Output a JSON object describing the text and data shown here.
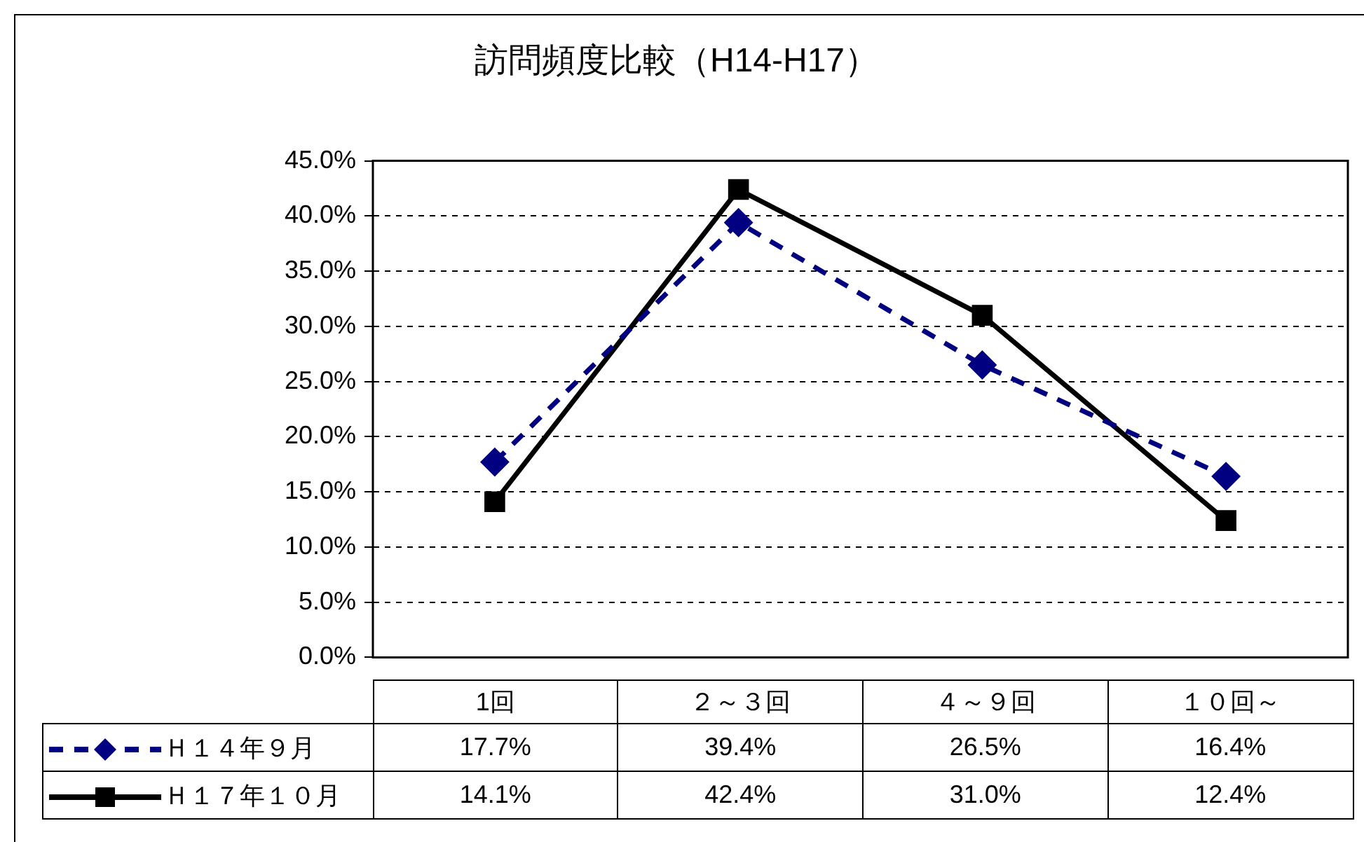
{
  "chart_data": {
    "type": "line",
    "title": "訪問頻度比較（H14-H17）",
    "categories": [
      "1回",
      "２～３回",
      "４～９回",
      "１０回～"
    ],
    "series": [
      {
        "name": "Ｈ１４年９月",
        "color": "#000080",
        "marker": "diamond",
        "line_style": "dashed",
        "values": [
          17.7,
          39.4,
          26.5,
          16.4
        ],
        "value_labels": [
          "17.7%",
          "39.4%",
          "26.5%",
          "16.4%"
        ]
      },
      {
        "name": "Ｈ１７年１０月",
        "color": "#000000",
        "marker": "square",
        "line_style": "solid",
        "values": [
          14.1,
          42.4,
          31.0,
          12.4
        ],
        "value_labels": [
          "14.1%",
          "42.4%",
          "31.0%",
          "12.4%"
        ]
      }
    ],
    "ylim": [
      0,
      45
    ],
    "yticks": [
      {
        "value": 0,
        "label": "0.0%"
      },
      {
        "value": 5,
        "label": "5.0%"
      },
      {
        "value": 10,
        "label": "10.0%"
      },
      {
        "value": 15,
        "label": "15.0%"
      },
      {
        "value": 20,
        "label": "20.0%"
      },
      {
        "value": 25,
        "label": "25.0%"
      },
      {
        "value": 30,
        "label": "30.0%"
      },
      {
        "value": 35,
        "label": "35.0%"
      },
      {
        "value": 40,
        "label": "40.0%"
      },
      {
        "value": 45,
        "label": "45.0%"
      }
    ],
    "grid": "y",
    "legend": "bottom"
  }
}
